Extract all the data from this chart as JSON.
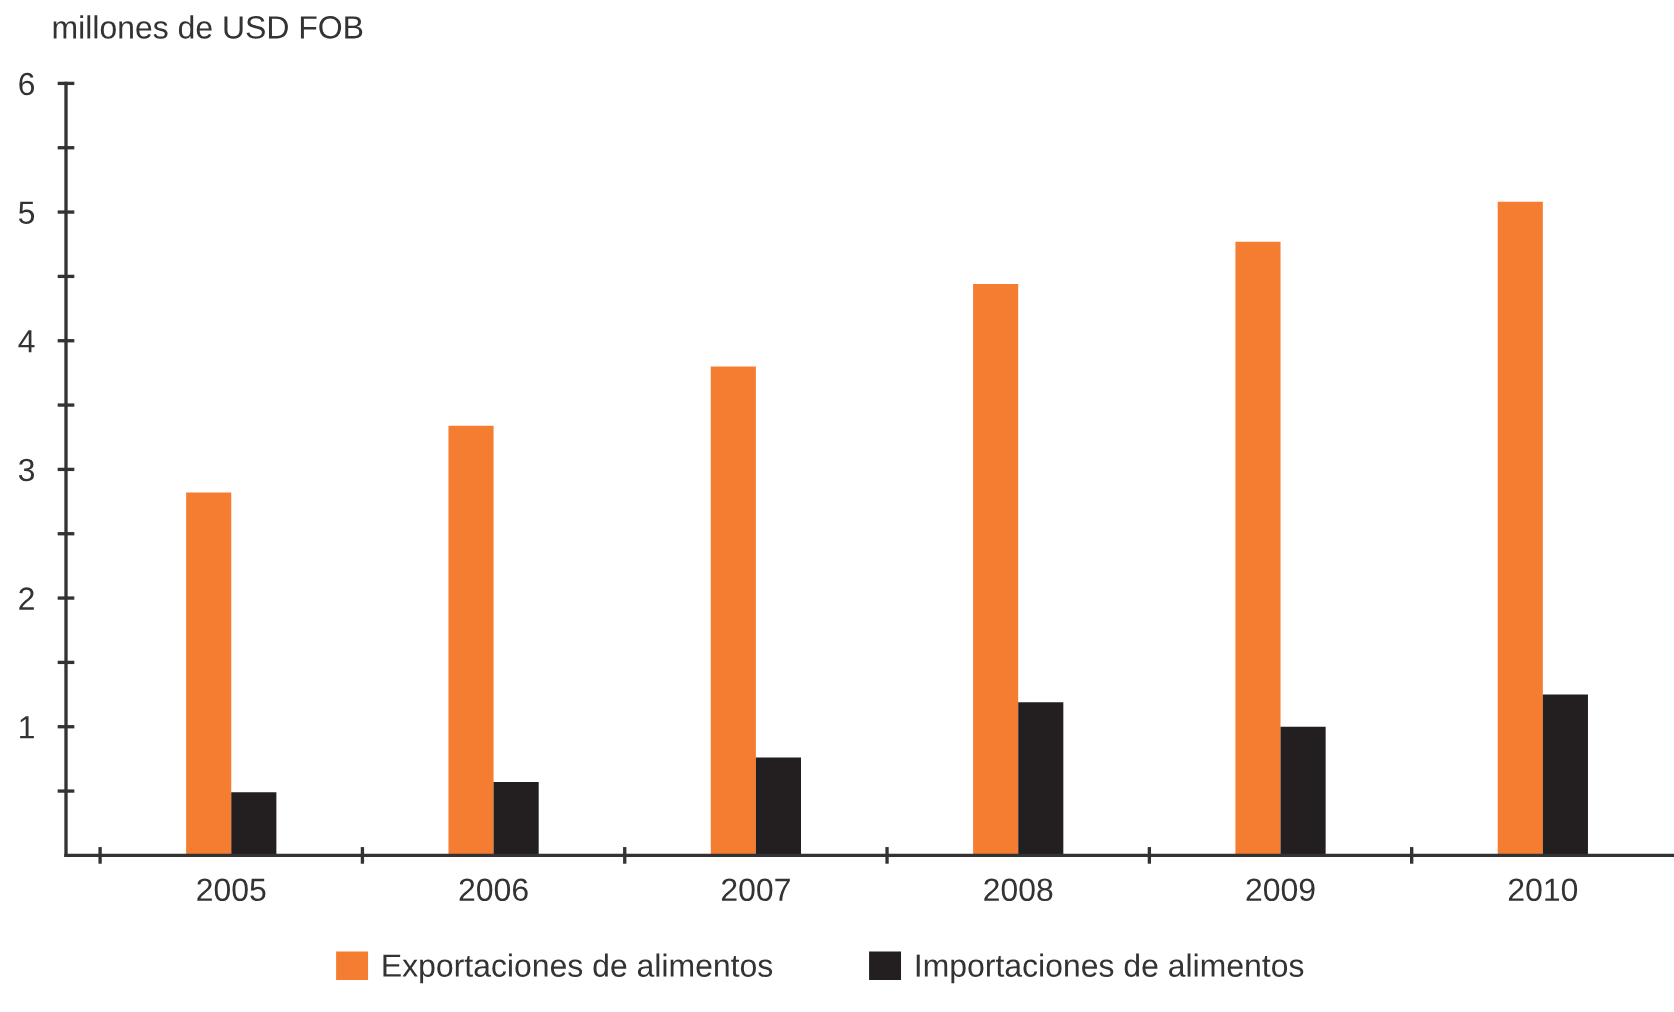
{
  "chart_data": {
    "type": "bar",
    "ylabel": "millones de USD FOB",
    "categories": [
      "2005",
      "2006",
      "2007",
      "2008",
      "2009",
      "2010"
    ],
    "series": [
      {
        "name": "Exportaciones de alimentos",
        "color": "#f47d32",
        "values": [
          2.82,
          3.34,
          3.8,
          4.44,
          4.77,
          5.08
        ]
      },
      {
        "name": "Importaciones de alimentos",
        "color": "#231f20",
        "values": [
          0.49,
          0.57,
          0.76,
          1.19,
          1.0,
          1.25
        ]
      }
    ],
    "ylim": [
      0,
      6
    ],
    "yticks": [
      {
        "value": 0.5,
        "label": null
      },
      1,
      {
        "value": 1.5,
        "label": null
      },
      2,
      {
        "value": 2.5,
        "label": null
      },
      3,
      {
        "value": 3.5,
        "label": null
      },
      4,
      {
        "value": 4.5,
        "label": null
      },
      5,
      {
        "value": 5.5,
        "label": null
      },
      6
    ],
    "grid": false,
    "legend": "bottom"
  }
}
